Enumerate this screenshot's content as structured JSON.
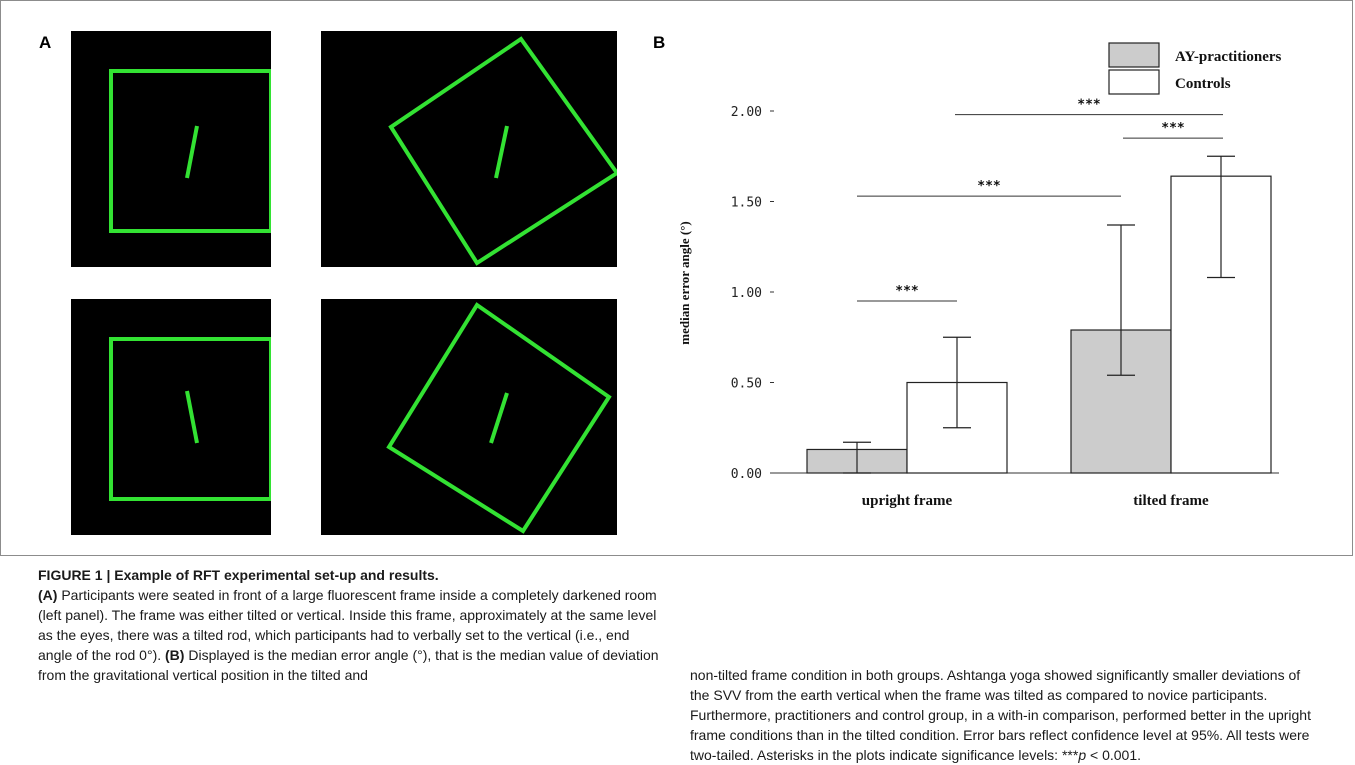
{
  "panel_a": {
    "label": "A"
  },
  "panel_b": {
    "label": "B"
  },
  "colors": {
    "frame_green": "#33e233",
    "stimulus_bg": "#000000",
    "bar_ay": "#cccccc",
    "bar_controls": "#ffffff"
  },
  "chart_data": {
    "type": "bar",
    "ylabel": "median error angle (°)",
    "ylim": [
      0,
      2.2
    ],
    "yticks": [
      0.0,
      0.5,
      1.0,
      1.5,
      2.0
    ],
    "ytick_labels": [
      "0.00",
      "0.50",
      "1.00",
      "1.50",
      "2.00"
    ],
    "categories": [
      "upright frame",
      "tilted frame"
    ],
    "series": [
      {
        "name": "AY-practitioners",
        "values": [
          0.13,
          0.79
        ],
        "err_low": [
          0.0,
          0.54
        ],
        "err_high": [
          0.17,
          1.37
        ],
        "color": "#cccccc"
      },
      {
        "name": "Controls",
        "values": [
          0.5,
          1.64
        ],
        "err_low": [
          0.25,
          1.08
        ],
        "err_high": [
          0.75,
          1.75
        ],
        "color": "#ffffff"
      }
    ],
    "legend_position": "top-right",
    "significance": [
      {
        "label": "***",
        "from": "upright frame AY-practitioners",
        "to": "upright frame Controls",
        "y": 0.95
      },
      {
        "label": "***",
        "from": "upright frame",
        "to": "tilted frame",
        "y": 1.53
      },
      {
        "label": "***",
        "from": "tilted frame AY-practitioners",
        "to": "tilted frame Controls",
        "y": 1.85
      },
      {
        "label": "***",
        "from": "upright frame Controls",
        "to": "tilted frame Controls",
        "y": 1.98
      }
    ]
  },
  "caption": {
    "title": "FIGURE 1 | Example of RFT experimental set-up and results.",
    "a_label": "(A)",
    "a_text": "Participants were seated in front of a large fluorescent frame inside a completely darkened room (left panel). The frame was either tilted or vertical. Inside this frame, approximately at the same level as the eyes, there was a tilted rod, which participants had to verbally set to the vertical (i.e., end angle of the rod 0°).",
    "b_label": "(B)",
    "b_text": "Displayed is the median error angle (°), that is the median value of deviation from the gravitational vertical position in the tilted and non-tilted frame condition in both groups. Ashtanga yoga showed significantly smaller deviations of the SVV from the earth vertical when the frame was tilted as compared to novice participants. Furthermore, practitioners and control group, in a with-in comparison, performed better in the upright frame conditions than in the tilted condition. Error bars reflect confidence level at 95%. All tests were two-tailed. Asterisks in the plots indicate significance levels: ",
    "sig_stars": "***",
    "sig_p": "p",
    "sig_rest": " < 0.001."
  }
}
